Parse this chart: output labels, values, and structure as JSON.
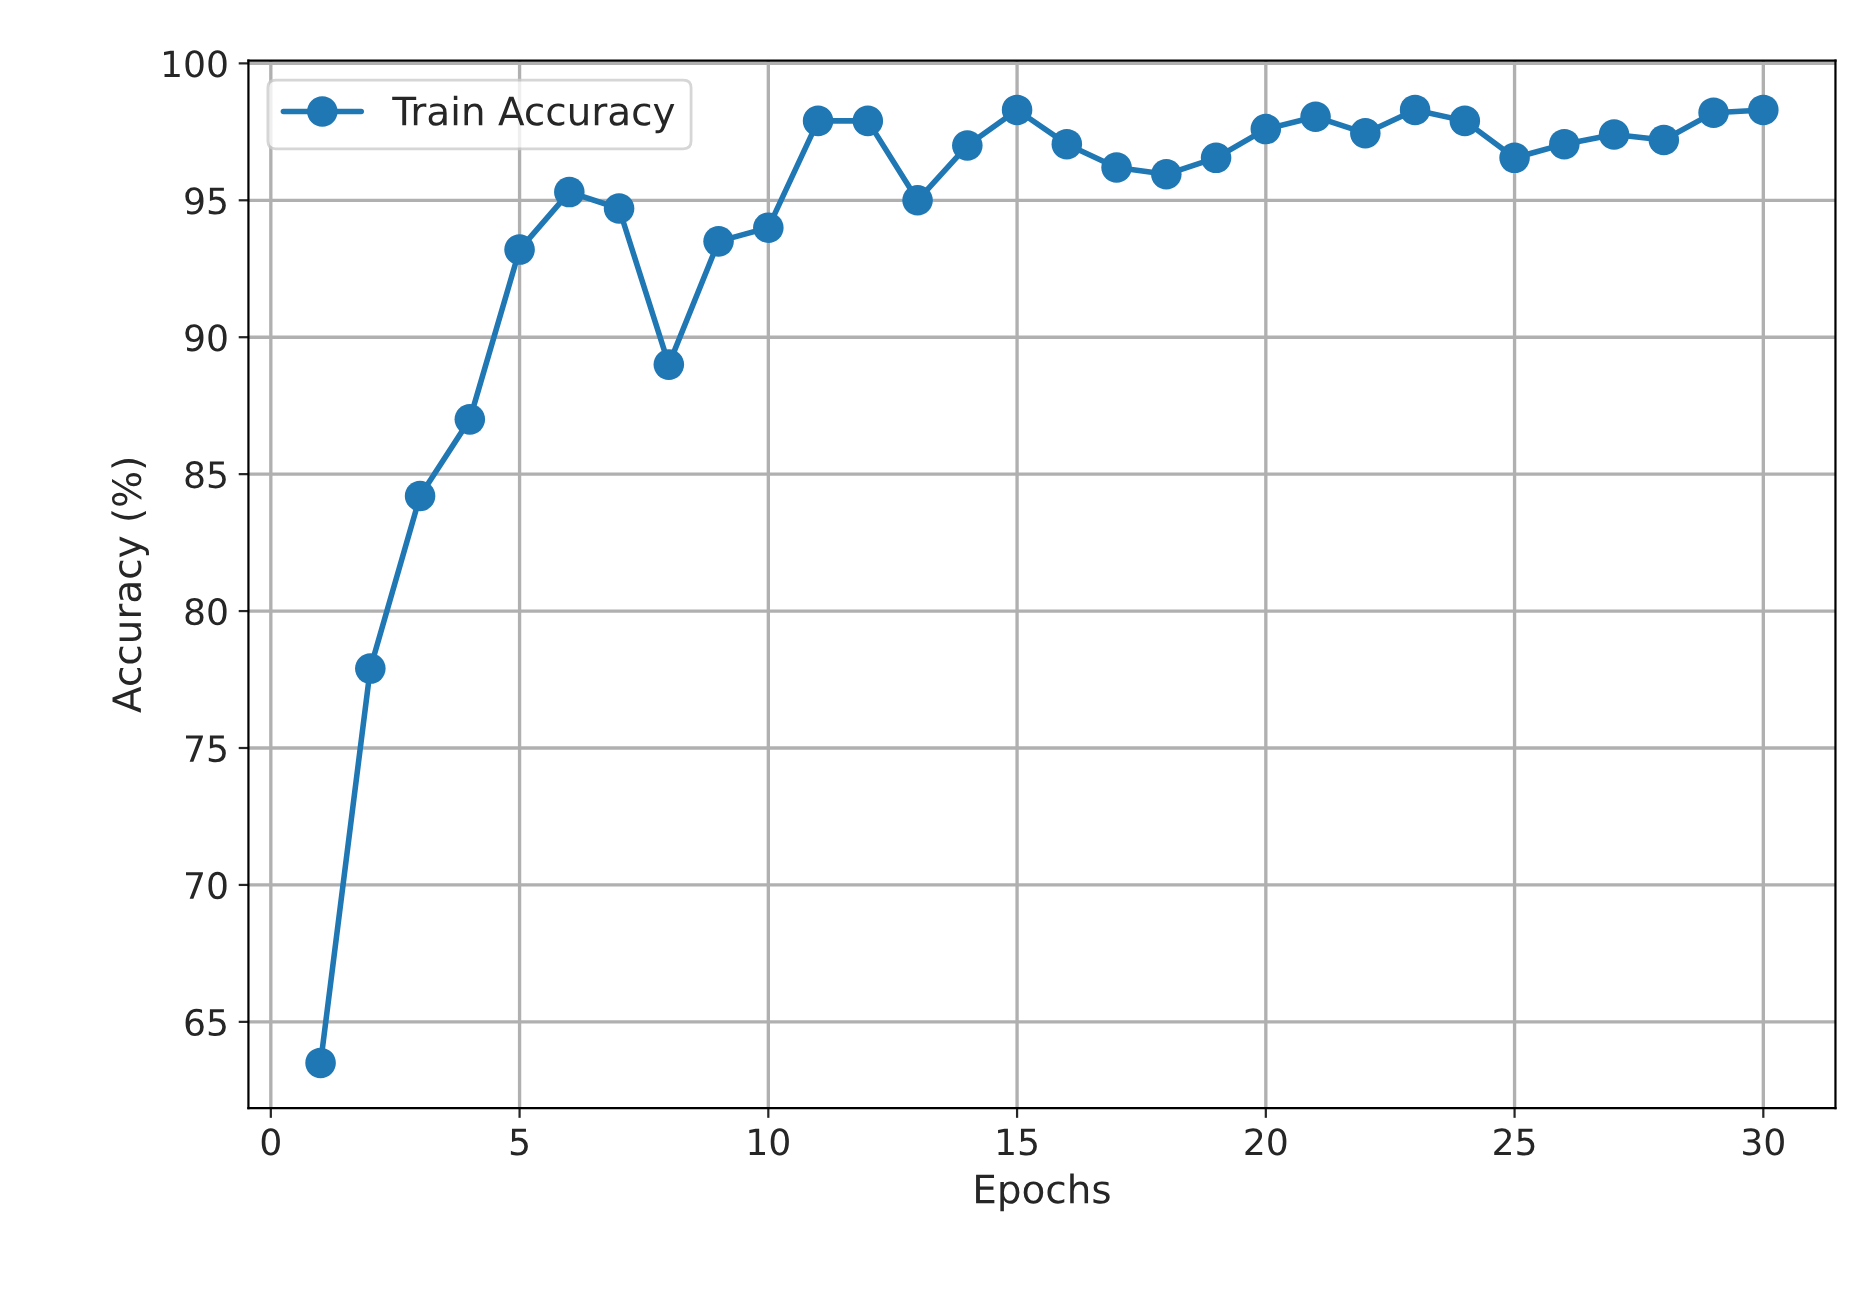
{
  "chart_data": {
    "type": "line",
    "xlabel": "Epochs",
    "ylabel": "Accuracy (%)",
    "x": [
      1,
      2,
      3,
      4,
      5,
      6,
      7,
      8,
      9,
      10,
      11,
      12,
      13,
      14,
      15,
      16,
      17,
      18,
      19,
      20,
      21,
      22,
      23,
      24,
      25,
      26,
      27,
      28,
      29,
      30
    ],
    "series": [
      {
        "name": "Train Accuracy",
        "color": "#1f77b4",
        "values": [
          63.5,
          77.9,
          84.2,
          87.0,
          93.2,
          95.3,
          94.7,
          89.0,
          93.5,
          94.0,
          97.9,
          97.9,
          95.0,
          97.0,
          98.3,
          97.05,
          96.2,
          95.95,
          96.55,
          97.6,
          98.05,
          97.45,
          98.3,
          97.9,
          96.55,
          97.05,
          97.4,
          97.2,
          98.2,
          98.3
        ]
      }
    ],
    "xlim": [
      -0.45,
      31.45
    ],
    "xticks": [
      0,
      5,
      10,
      15,
      20,
      25,
      30
    ],
    "ylim": [
      61.85,
      100.1
    ],
    "yticks": [
      65,
      70,
      75,
      80,
      85,
      90,
      95,
      100
    ],
    "grid": true,
    "legend": "top left",
    "marker": "circle",
    "line_style": "solid"
  }
}
